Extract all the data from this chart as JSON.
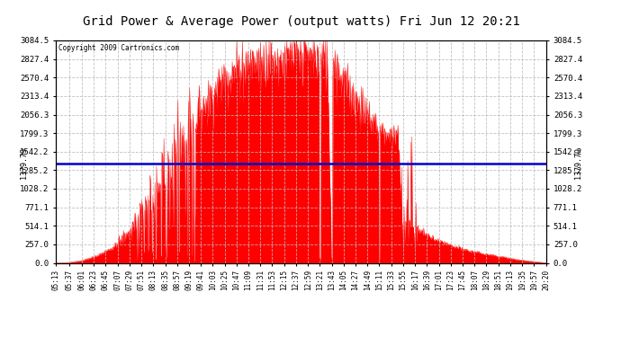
{
  "title": "Grid Power & Average Power (output watts) Fri Jun 12 20:21",
  "copyright": "Copyright 2009 Cartronics.com",
  "average_value": 1379.79,
  "y_max": 3084.5,
  "y_min": 0.0,
  "y_ticks": [
    0.0,
    257.0,
    514.1,
    771.1,
    1028.2,
    1285.2,
    1542.2,
    1799.3,
    2056.3,
    2313.4,
    2570.4,
    2827.4,
    3084.5
  ],
  "fill_color": "#FF0000",
  "line_color": "#FF0000",
  "avg_line_color": "#0000CC",
  "background_color": "#FFFFFF",
  "grid_color": "#BBBBBB",
  "title_fontsize": 11,
  "x_labels": [
    "05:13",
    "05:37",
    "06:01",
    "06:23",
    "06:45",
    "07:07",
    "07:29",
    "07:51",
    "08:13",
    "08:35",
    "08:57",
    "09:19",
    "09:41",
    "10:03",
    "10:25",
    "10:47",
    "11:09",
    "11:31",
    "11:53",
    "12:15",
    "12:37",
    "12:59",
    "13:21",
    "13:43",
    "14:05",
    "14:27",
    "14:49",
    "15:11",
    "15:33",
    "15:55",
    "16:17",
    "16:39",
    "17:01",
    "17:23",
    "17:45",
    "18:07",
    "18:29",
    "18:51",
    "19:13",
    "19:35",
    "19:57",
    "20:20"
  ]
}
